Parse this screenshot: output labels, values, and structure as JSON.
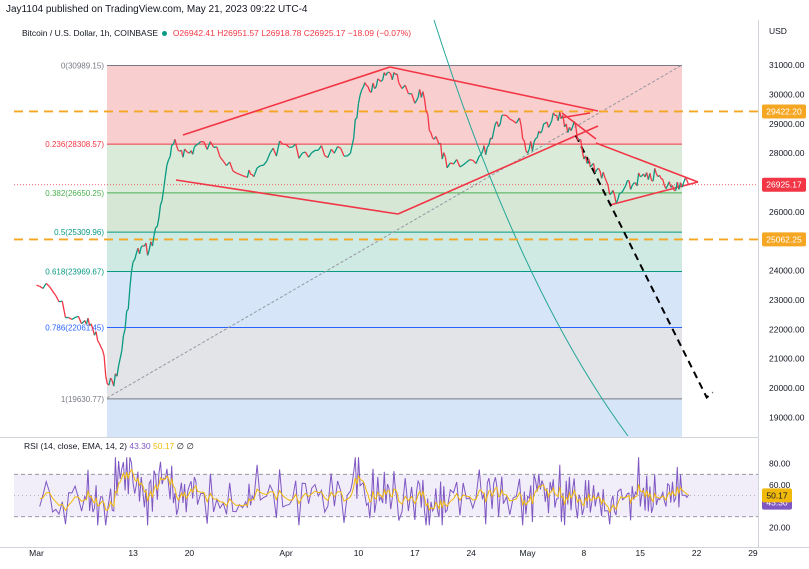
{
  "header": {
    "publisher": "Jay1104 published on TradingView.com, May 21, 2023 09:22 UTC-4",
    "symbol": "Bitcoin / U.S. Dollar, 1h, COINBASE",
    "open": "O26942.41",
    "high": "H26951.57",
    "low": "L26918.78",
    "close": "C26925.17",
    "change": "−18.09 (−0.07%)",
    "currency": "USD"
  },
  "colors": {
    "up": "#089981",
    "down": "#f23645",
    "pattern": "#f23645",
    "dashed_level": "#f5a623",
    "projection": "#000000",
    "arc": "#26a69a",
    "rsi": "#7e57c2",
    "rsi_ema": "#f0b90b"
  },
  "chart_data": [
    {
      "type": "line",
      "title": "Bitcoin / U.S. Dollar, 1h, COINBASE",
      "xlabel": "",
      "ylabel": "USD",
      "ylim": [
        18500,
        31500
      ],
      "x_ticks": [
        "Mar",
        "13",
        "20",
        "Apr",
        "10",
        "17",
        "24",
        "May",
        "8",
        "15",
        "22",
        "29"
      ],
      "y_ticks": [
        19000,
        20000,
        21000,
        22000,
        23000,
        24000,
        25000,
        26000,
        27000,
        28000,
        29000,
        30000,
        31000
      ],
      "grid": false,
      "series": [
        {
          "name": "",
          "x": [
            "2023-03-01",
            "2023-03-03",
            "2023-03-05",
            "2023-03-07",
            "2023-03-08",
            "2023-03-09",
            "2023-03-10",
            "2023-03-11",
            "2023-03-12",
            "2023-03-13",
            "2023-03-14",
            "2023-03-15",
            "2023-03-16",
            "2023-03-17",
            "2023-03-18",
            "2023-03-19",
            "2023-03-20",
            "2023-03-21",
            "2023-03-23",
            "2023-03-25",
            "2023-03-27",
            "2023-03-28",
            "2023-03-30",
            "2023-04-01",
            "2023-04-03",
            "2023-04-05",
            "2023-04-07",
            "2023-04-09",
            "2023-04-10",
            "2023-04-11",
            "2023-04-12",
            "2023-04-13",
            "2023-04-14",
            "2023-04-15",
            "2023-04-17",
            "2023-04-18",
            "2023-04-19",
            "2023-04-20",
            "2023-04-21",
            "2023-04-23",
            "2023-04-25",
            "2023-04-26",
            "2023-04-27",
            "2023-04-28",
            "2023-04-30",
            "2023-05-01",
            "2023-05-02",
            "2023-05-03",
            "2023-05-04",
            "2023-05-05",
            "2023-05-06",
            "2023-05-07",
            "2023-05-08",
            "2023-05-09",
            "2023-05-10",
            "2023-05-11",
            "2023-05-12",
            "2023-05-13",
            "2023-05-14",
            "2023-05-15",
            "2023-05-16",
            "2023-05-17",
            "2023-05-18",
            "2023-05-19",
            "2023-05-20",
            "2023-05-21"
          ],
          "values": [
            23500,
            23300,
            22400,
            22300,
            22000,
            21400,
            20100,
            20400,
            22000,
            24300,
            24800,
            24700,
            25500,
            27200,
            28300,
            28100,
            28000,
            28300,
            28200,
            27700,
            27200,
            27200,
            28000,
            28300,
            28000,
            28100,
            28000,
            28000,
            29700,
            30300,
            30200,
            30500,
            30700,
            30400,
            29700,
            30100,
            28700,
            28300,
            27500,
            27600,
            27900,
            28200,
            29000,
            29300,
            29200,
            28000,
            28500,
            29000,
            29100,
            29400,
            28700,
            28900,
            27800,
            27600,
            27400,
            26900,
            26300,
            26800,
            26900,
            27200,
            27100,
            27300,
            26900,
            26900,
            27000,
            26925
          ]
        }
      ],
      "fibonacci": [
        {
          "ratio": "0",
          "price": "30989.15",
          "label": "0(30989.15)"
        },
        {
          "ratio": "0.236",
          "price": "28308.57",
          "label": "0.236(28308.57)"
        },
        {
          "ratio": "0.382",
          "price": "26650.25",
          "label": "0.382(26650.25)"
        },
        {
          "ratio": "0.5",
          "price": "25309.96",
          "label": "0.5(25309.96)"
        },
        {
          "ratio": "0.618",
          "price": "23969.67",
          "label": "0.618(23969.67)"
        },
        {
          "ratio": "0.786",
          "price": "22061.45",
          "label": "0.786(22061.45)"
        },
        {
          "ratio": "1",
          "price": "19630.77",
          "label": "1(19630.77)"
        }
      ],
      "price_labels": [
        {
          "value": 29422.2,
          "text": "29422.20",
          "kind": "level"
        },
        {
          "value": 26925.17,
          "text": "26925.17",
          "kind": "last"
        },
        {
          "value": 25062.25,
          "text": "25062.25",
          "kind": "level"
        }
      ],
      "horizontal_levels": [
        29422.2,
        25062.25
      ],
      "projection": {
        "x": [
          "2023-05-07",
          "2023-05-24"
        ],
        "values": [
          28600,
          19850
        ]
      }
    },
    {
      "type": "line",
      "title": "RSI (14, close, EMA, 14, 2)",
      "xlabel": "",
      "ylabel": "",
      "ylim": [
        10,
        90
      ],
      "y_ticks": [
        20,
        40,
        60,
        80
      ],
      "bands": [
        30,
        70
      ],
      "series": [
        {
          "name": "RSI",
          "last": 43.3,
          "last_text": "43.30"
        },
        {
          "name": "EMA",
          "last": 50.17,
          "last_text": "50.17"
        }
      ],
      "legend_text": "RSI (14, close, EMA, 14, 2)",
      "legend_values": [
        "43.30",
        "50.17",
        "∅",
        "∅"
      ]
    }
  ]
}
